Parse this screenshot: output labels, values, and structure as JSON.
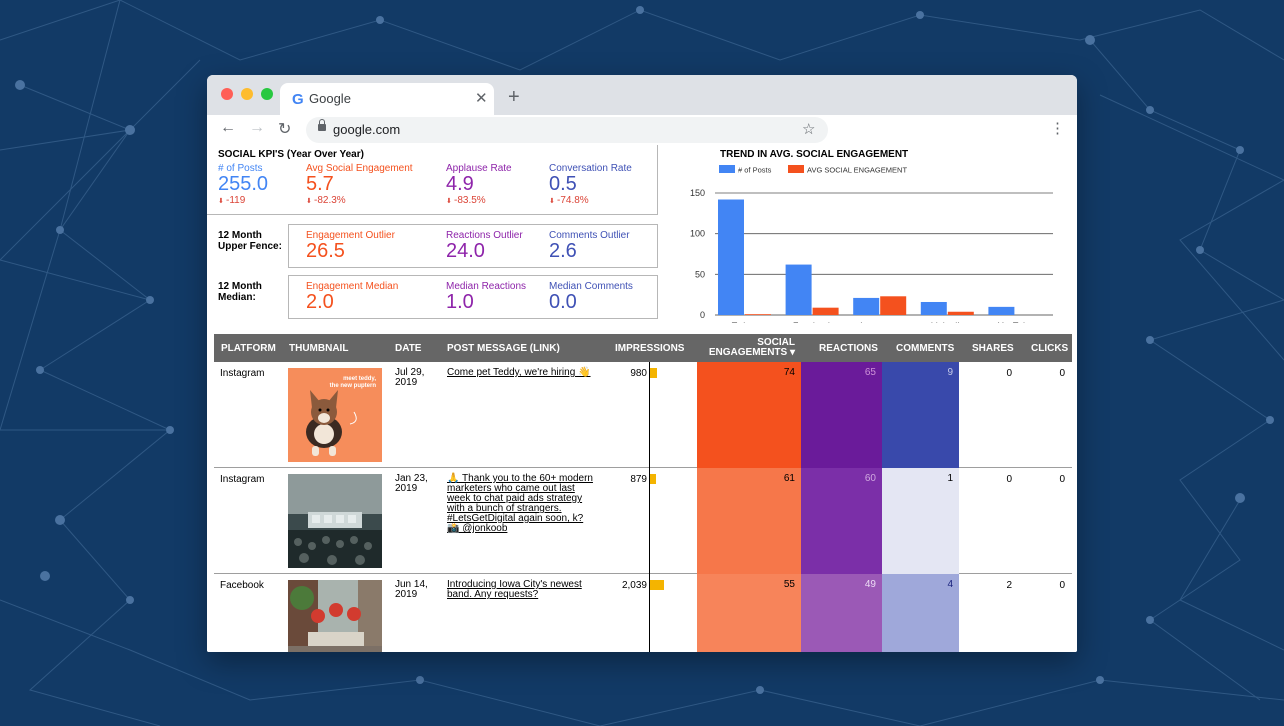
{
  "browser": {
    "tab_title": "Google",
    "tab_close": "✕",
    "new_tab": "+",
    "url": "google.com",
    "back": "←",
    "forward": "→",
    "reload": "↻",
    "star": "☆",
    "menu": "⋮",
    "google_g": "G"
  },
  "kpis": {
    "title": "SOCIAL KPI'S (Year Over Year)",
    "top": [
      {
        "label": "# of Posts",
        "value": "255.0",
        "delta": "-119",
        "color": "#4285f4"
      },
      {
        "label": "Avg Social Engagement",
        "value": "5.7",
        "delta": "-82.3%",
        "color": "#f4511e"
      },
      {
        "label": "Applause Rate",
        "value": "4.9",
        "delta": "-83.5%",
        "color": "#8e24aa"
      },
      {
        "label": "Conversation Rate",
        "value": "0.5",
        "delta": "-74.8%",
        "color": "#3f51b5"
      }
    ],
    "upper_fence_label": "12 Month Upper Fence:",
    "upper_fence": [
      {
        "label": "Engagement Outlier",
        "value": "26.5",
        "color": "#f4511e"
      },
      {
        "label": "Reactions Outlier",
        "value": "24.0",
        "color": "#8e24aa"
      },
      {
        "label": "Comments Outlier",
        "value": "2.6",
        "color": "#3f51b5"
      }
    ],
    "median_label": "12 Month Median:",
    "median": [
      {
        "label": "Engagement Median",
        "value": "2.0",
        "color": "#f4511e"
      },
      {
        "label": "Median Reactions",
        "value": "1.0",
        "color": "#8e24aa"
      },
      {
        "label": "Median Comments",
        "value": "0.0",
        "color": "#3f51b5"
      }
    ]
  },
  "chart_data": {
    "type": "bar",
    "title": "TREND IN AVG. SOCIAL ENGAGEMENT",
    "categories": [
      "Twitter",
      "Facebook",
      "Instagram",
      "LinkedIn",
      "YouTube"
    ],
    "series": [
      {
        "name": "# of Posts",
        "color": "#4285f4",
        "values": [
          142,
          62,
          21,
          16,
          10
        ]
      },
      {
        "name": "AVG SOCIAL ENGAGEMENT",
        "color": "#f4511e",
        "values": [
          1,
          9,
          23,
          4,
          0
        ]
      }
    ],
    "yticks": [
      "0",
      "50",
      "100",
      "150"
    ],
    "ylim": [
      0,
      150
    ],
    "legend": "top",
    "grid": true
  },
  "table": {
    "headers": {
      "platform": "PLATFORM",
      "thumbnail": "THUMBNAIL",
      "date": "DATE",
      "message": "POST MESSAGE (LINK)",
      "impressions": "IMPRESSIONS",
      "engagements_1": "SOCIAL",
      "engagements_2": "ENGAGEMENTS ▾",
      "reactions": "REACTIONS",
      "comments": "COMMENTS",
      "shares": "SHARES",
      "clicks": "CLICKS"
    },
    "rows": [
      {
        "platform": "Instagram",
        "date_1": "Jul 29,",
        "date_2": "2019",
        "message": "Come pet Teddy, we're hiring 👋",
        "impressions": "980",
        "impressions_value": 980,
        "engagements": "74",
        "reactions": "65",
        "comments": "9",
        "shares": "0",
        "clicks": "0",
        "thumb_caption_1": "meet teddy,",
        "thumb_caption_2": "the new puptern",
        "eng_color": "#f4511e",
        "react_color": "#6a1b9a",
        "comm_color": "#3949ab",
        "react_text": "#ce93d8",
        "comm_text": "#c5cae9"
      },
      {
        "platform": "Instagram",
        "date_1": "Jan 23,",
        "date_2": "2019",
        "message": "🙏 Thank you to the 60+ modern marketers who came out last week to chat paid ads strategy with a bunch of strangers. #LetsGetDigital again soon, k? 📸 @jonkoob",
        "impressions": "879",
        "impressions_value": 879,
        "engagements": "61",
        "reactions": "60",
        "comments": "1",
        "shares": "0",
        "clicks": "0",
        "eng_color": "#f6774a",
        "react_color": "#7b2fa8",
        "comm_color": "#e4e6f3",
        "react_text": "#d1a9e0",
        "comm_text": "#000000"
      },
      {
        "platform": "Facebook",
        "date_1": "Jun 14,",
        "date_2": "2019",
        "message": "Introducing Iowa City's newest band. Any requests?",
        "impressions": "2,039",
        "impressions_value": 2039,
        "engagements": "55",
        "reactions": "49",
        "comments": "4",
        "shares": "2",
        "clicks": "0",
        "eng_color": "#f7845a",
        "react_color": "#9b59b6",
        "comm_color": "#9fa8da",
        "react_text": "#eddcf5",
        "comm_text": "#1a237e"
      }
    ]
  }
}
